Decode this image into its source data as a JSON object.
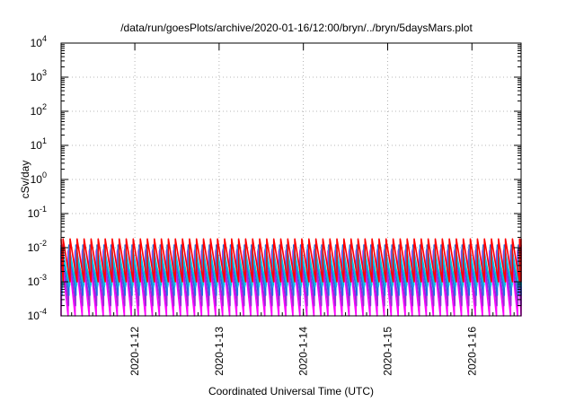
{
  "chart_data": {
    "type": "line",
    "title": "/data/run/goesPlots/archive/2020-01-16/12:00/bryn/../bryn/5daysMars.plot",
    "xlabel": "Coordinated Universal Time (UTC)",
    "ylabel": "cSv/day",
    "x_range": [
      "2020-01-11T03:00",
      "2020-01-16T14:00"
    ],
    "x_ticks": [
      "2020-1-12",
      "2020-1-13",
      "2020-1-14",
      "2020-1-15",
      "2020-1-16"
    ],
    "y_scale": "log",
    "y_range": [
      0.0001,
      10000
    ],
    "y_ticks": [
      {
        "base": "10",
        "exp": "-4"
      },
      {
        "base": "10",
        "exp": "-3"
      },
      {
        "base": "10",
        "exp": "-2"
      },
      {
        "base": "10",
        "exp": "-1"
      },
      {
        "base": "10",
        "exp": "0"
      },
      {
        "base": "10",
        "exp": "1"
      },
      {
        "base": "10",
        "exp": "2"
      },
      {
        "base": "10",
        "exp": "3"
      },
      {
        "base": "10",
        "exp": "4"
      }
    ],
    "grid": true,
    "sawtooth_period_hours": 2,
    "series": [
      {
        "color": "#ff00ff",
        "peak": 0.008,
        "trough": 0.0001
      },
      {
        "color": "#9a2bd6",
        "peak": 0.009,
        "trough": 0.0002
      },
      {
        "color": "#1f6fe0",
        "peak": 0.012,
        "trough": 0.0004
      },
      {
        "color": "#2f9ce8",
        "peak": 0.01,
        "trough": 0.0007
      },
      {
        "color": "#00c8d8",
        "peak": 0.006,
        "trough": 0.0008
      },
      {
        "color": "#ff0000",
        "peak": 0.018,
        "trough": 0.001
      }
    ]
  }
}
